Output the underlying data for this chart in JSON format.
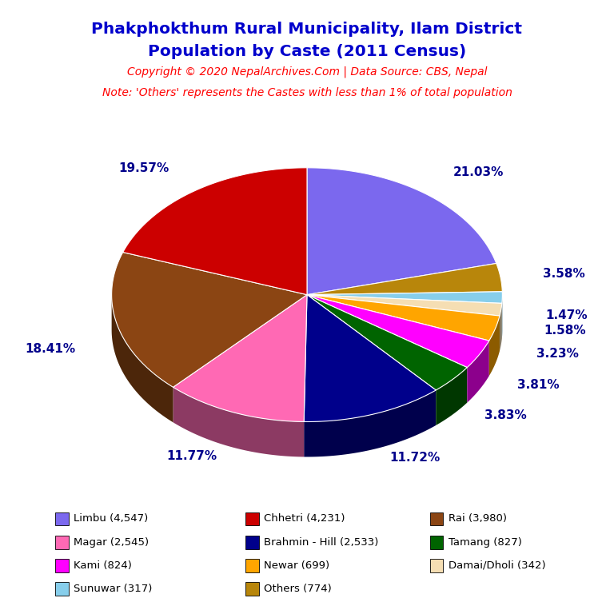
{
  "title_line1": "Phakphokthum Rural Municipality, Ilam District",
  "title_line2": "Population by Caste (2011 Census)",
  "copyright_text": "Copyright © 2020 NepalArchives.Com | Data Source: CBS, Nepal",
  "note_text": "Note: 'Others' represents the Castes with less than 1% of total population",
  "title_color": "#0000cc",
  "copyright_color": "#ff0000",
  "note_color": "#ff0000",
  "background_color": "#ffffff",
  "slices": [
    {
      "label": "Limbu",
      "value": 4547,
      "pct": 21.03,
      "color": "#7b68ee"
    },
    {
      "label": "Others",
      "value": 774,
      "pct": 3.58,
      "color": "#b8860b"
    },
    {
      "label": "Sunuwar",
      "value": 317,
      "pct": 1.47,
      "color": "#87ceeb"
    },
    {
      "label": "Damai/Dholi",
      "value": 342,
      "pct": 1.58,
      "color": "#f5deb3"
    },
    {
      "label": "Newar",
      "value": 699,
      "pct": 3.23,
      "color": "#ffa500"
    },
    {
      "label": "Kami",
      "value": 824,
      "pct": 3.81,
      "color": "#ff00ff"
    },
    {
      "label": "Tamang",
      "value": 827,
      "pct": 3.83,
      "color": "#006400"
    },
    {
      "label": "Brahmin - Hill",
      "value": 2533,
      "pct": 11.72,
      "color": "#00008b"
    },
    {
      "label": "Magar",
      "value": 2545,
      "pct": 11.77,
      "color": "#ff69b4"
    },
    {
      "label": "Rai",
      "value": 3980,
      "pct": 18.41,
      "color": "#8b4513"
    },
    {
      "label": "Chhetri",
      "value": 4231,
      "pct": 19.57,
      "color": "#cc0000"
    }
  ],
  "label_color": "#00008b",
  "label_fontsize": 11,
  "legend_items": [
    {
      "label": "Limbu (4,547)",
      "color": "#7b68ee"
    },
    {
      "label": "Chhetri (4,231)",
      "color": "#cc0000"
    },
    {
      "label": "Rai (3,980)",
      "color": "#8b4513"
    },
    {
      "label": "Magar (2,545)",
      "color": "#ff69b4"
    },
    {
      "label": "Brahmin - Hill (2,533)",
      "color": "#00008b"
    },
    {
      "label": "Tamang (827)",
      "color": "#006400"
    },
    {
      "label": "Kami (824)",
      "color": "#ff00ff"
    },
    {
      "label": "Newar (699)",
      "color": "#ffa500"
    },
    {
      "label": "Damai/Dholi (342)",
      "color": "#f5deb3"
    },
    {
      "label": "Sunuwar (317)",
      "color": "#87ceeb"
    },
    {
      "label": "Others (774)",
      "color": "#b8860b"
    }
  ]
}
